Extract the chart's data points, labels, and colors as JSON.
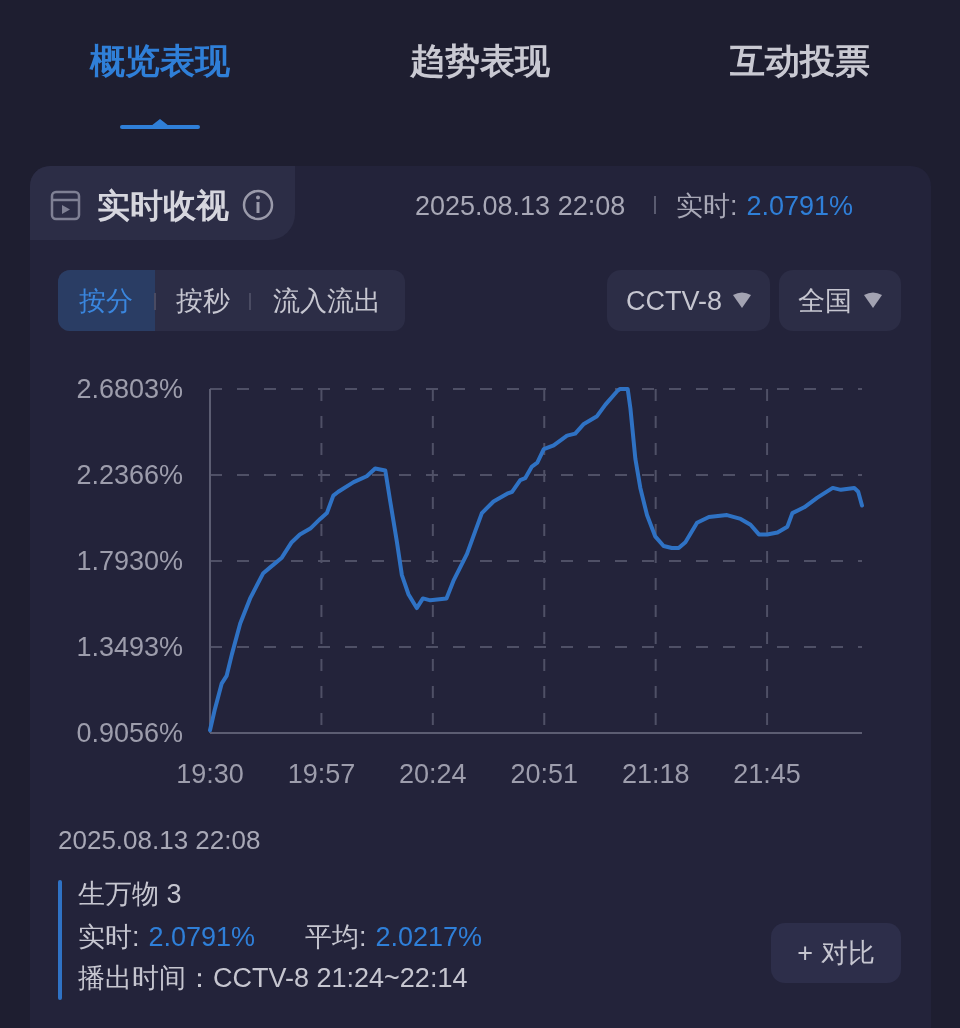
{
  "chart_data": {
    "type": "line",
    "title": "实时收视",
    "x": [
      19.5,
      19.52,
      19.547,
      19.567,
      19.588,
      19.622,
      19.662,
      19.715,
      19.743,
      19.79,
      19.83,
      19.863,
      19.905,
      19.945,
      19.972,
      19.998,
      20.018,
      20.08,
      20.133,
      20.167,
      20.208,
      20.228,
      20.255,
      20.275,
      20.302,
      20.335,
      20.36,
      20.39,
      20.455,
      20.483,
      20.538,
      20.572,
      20.598,
      20.645,
      20.7,
      20.72,
      20.753,
      20.773,
      20.8,
      20.822,
      20.848,
      20.888,
      20.942,
      20.975,
      21.01,
      21.063,
      21.097,
      21.145,
      21.155,
      21.187,
      21.198,
      21.218,
      21.238,
      21.265,
      21.298,
      21.332,
      21.365,
      21.393,
      21.42,
      21.467,
      21.515,
      21.588,
      21.643,
      21.683,
      21.717,
      21.75,
      21.792,
      21.832,
      21.852,
      21.9,
      21.953,
      22.015,
      22.048,
      22.102,
      22.118,
      22.1333
    ],
    "values": [
      0.92,
      1.03,
      1.16,
      1.2,
      1.31,
      1.47,
      1.6,
      1.73,
      1.76,
      1.81,
      1.89,
      1.93,
      1.96,
      2.01,
      2.04,
      2.13,
      2.15,
      2.2,
      2.23,
      2.27,
      2.26,
      2.1,
      1.89,
      1.72,
      1.62,
      1.55,
      1.6,
      1.59,
      1.6,
      1.69,
      1.83,
      1.95,
      2.04,
      2.1,
      2.14,
      2.15,
      2.21,
      2.22,
      2.28,
      2.3,
      2.37,
      2.39,
      2.44,
      2.45,
      2.5,
      2.54,
      2.6,
      2.67,
      2.68,
      2.68,
      2.58,
      2.32,
      2.17,
      2.03,
      1.92,
      1.87,
      1.86,
      1.86,
      1.89,
      1.99,
      2.02,
      2.03,
      2.01,
      1.98,
      1.93,
      1.93,
      1.94,
      1.97,
      2.04,
      2.07,
      2.12,
      2.17,
      2.16,
      2.17,
      2.15,
      2.0791
    ],
    "color": "#2f72c4",
    "xlim": [
      19.5,
      22.1333
    ],
    "xticks": [
      {
        "value": 19.5,
        "label": "19:30"
      },
      {
        "value": 19.95,
        "label": "19:57"
      },
      {
        "value": 20.4,
        "label": "20:24"
      },
      {
        "value": 20.85,
        "label": "20:51"
      },
      {
        "value": 21.3,
        "label": "21:18"
      },
      {
        "value": 21.75,
        "label": "21:45"
      }
    ],
    "ylim": [
      0.9056,
      2.6803
    ],
    "yticks": [
      {
        "value": 0.9056,
        "label": "0.9056%"
      },
      {
        "value": 1.3493,
        "label": "1.3493%"
      },
      {
        "value": 1.793,
        "label": "1.7930%"
      },
      {
        "value": 2.2366,
        "label": "2.2366%"
      },
      {
        "value": 2.6803,
        "label": "2.6803%"
      }
    ],
    "grid": true,
    "annotations": [
      "概览表现",
      "趋势表现",
      "互动投票",
      "2025.08.13 22:08",
      "实时:",
      "2.0791%",
      "按分",
      "按秒",
      "流入流出",
      "CCTV-8",
      "全国",
      "2025.08.13 22:08",
      "生万物 3",
      "实时:",
      "2.0791%",
      "平均:",
      "2.0217%",
      "播出时间：CCTV-8 21:24~22:14",
      "+ 对比"
    ]
  }
}
